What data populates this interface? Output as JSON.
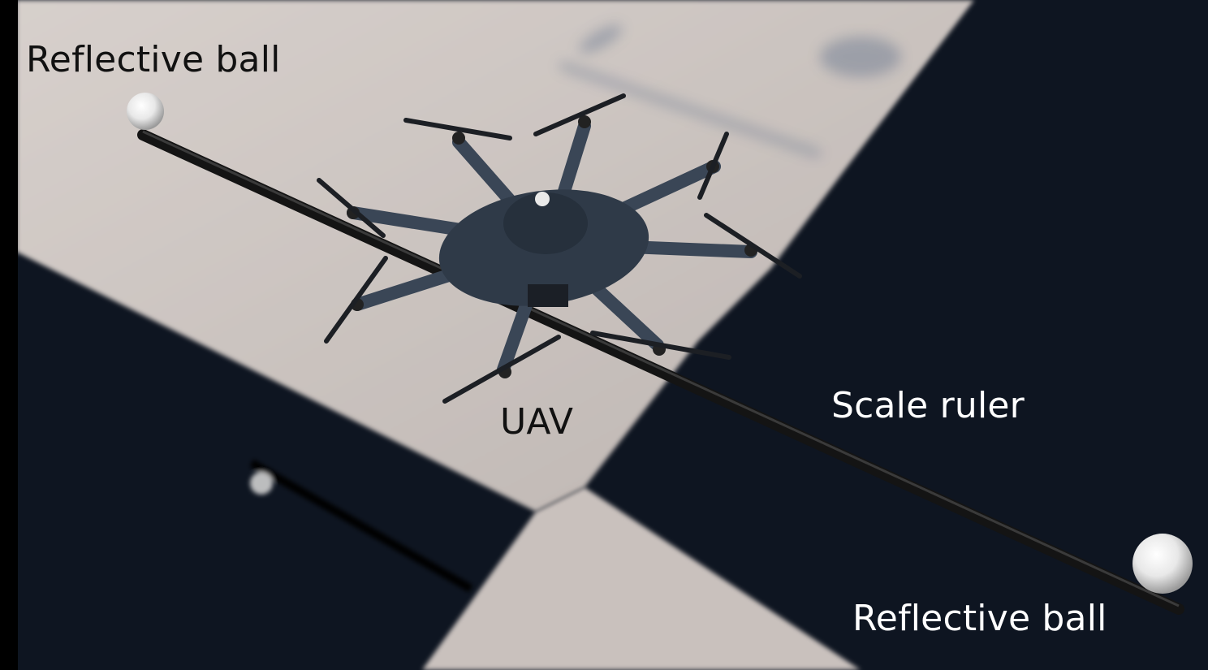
{
  "labels": {
    "top_left": "Reflective ball",
    "uav": "UAV",
    "scale_ruler": "Scale ruler",
    "bottom_right": "Reflective ball"
  },
  "colors": {
    "floor_light": "#cfc8c4",
    "floor_dark": "#0d1420",
    "drone_frame": "#3a4656",
    "ruler": "#1a1a1a",
    "label_dark": "#111111",
    "label_light": "#ffffff"
  }
}
